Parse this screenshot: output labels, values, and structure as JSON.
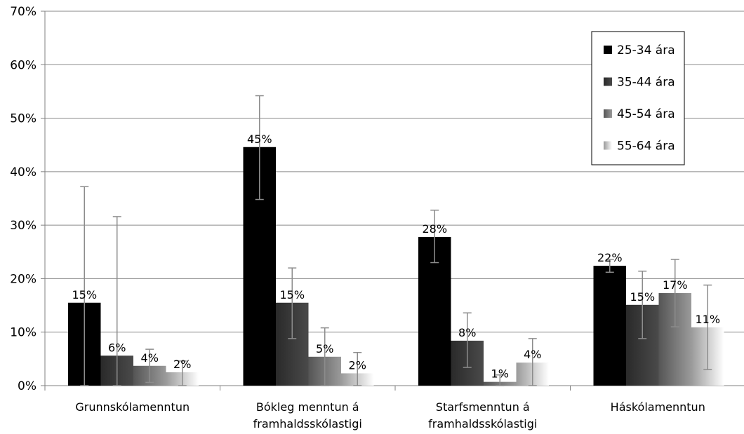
{
  "chart_data": {
    "type": "bar",
    "categories": [
      [
        "Grunnskólamenntun"
      ],
      [
        "Bókleg menntun á",
        "framhaldsskólastigi"
      ],
      [
        "Starfsmenntun á",
        "framhaldsskólastigi"
      ],
      [
        "Háskólamenntun"
      ]
    ],
    "series": [
      {
        "name": "25-34 ára",
        "values": [
          15.5,
          44.6,
          27.8,
          22.4
        ],
        "labels": [
          "15%",
          "45%",
          "28%",
          "22%"
        ],
        "error_low": [
          0,
          34.8,
          23.0,
          21.2
        ],
        "error_high": [
          37.2,
          54.2,
          32.8,
          23.6
        ]
      },
      {
        "name": "35-44 ára",
        "values": [
          5.6,
          15.5,
          8.4,
          15.1
        ],
        "labels": [
          "6%",
          "15%",
          "8%",
          "15%"
        ],
        "error_low": [
          0,
          8.8,
          3.4,
          8.8
        ],
        "error_high": [
          31.6,
          22.0,
          13.6,
          21.4
        ]
      },
      {
        "name": "45-54 ára",
        "values": [
          3.7,
          5.4,
          0.7,
          17.3
        ],
        "labels": [
          "4%",
          "5%",
          "1%",
          "17%"
        ],
        "error_low": [
          0.6,
          0,
          0,
          11.0
        ],
        "error_high": [
          6.8,
          10.8,
          2.0,
          23.6
        ]
      },
      {
        "name": "55-64 ára",
        "values": [
          2.5,
          2.3,
          4.3,
          10.9
        ],
        "labels": [
          "2%",
          "2%",
          "4%",
          "11%"
        ],
        "error_low": [
          0,
          0,
          0,
          3.0
        ],
        "error_high": [
          4.6,
          6.2,
          8.8,
          18.8
        ]
      }
    ],
    "colors": [
      "#000000",
      "#3a3a3a",
      "#6e6e6e",
      "#c4c4c4"
    ],
    "ylim": [
      0,
      70
    ],
    "yticks": [
      0,
      10,
      20,
      30,
      40,
      50,
      60,
      70
    ],
    "ytick_suffix": "%",
    "grid": true,
    "legend": "top-right",
    "title": "",
    "xlabel": "",
    "ylabel": ""
  }
}
